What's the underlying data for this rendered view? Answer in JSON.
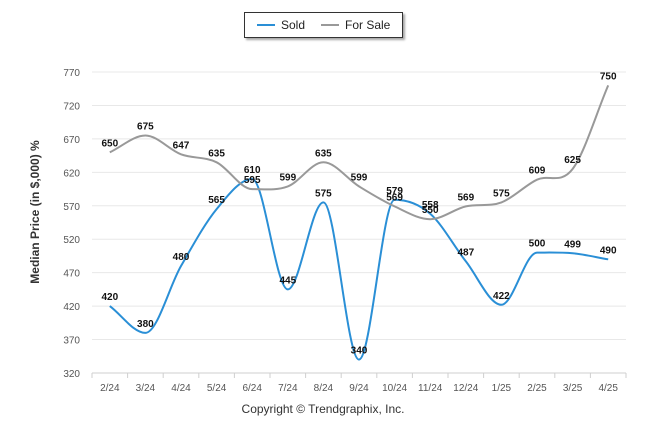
{
  "legend": {
    "sold_label": "Sold",
    "for_sale_label": "For Sale"
  },
  "copyright": "Copyright © Trendgraphix, Inc.",
  "colors": {
    "sold": "#2a8fd6",
    "for_sale": "#999999",
    "grid": "#e8e8e8",
    "axis_text": "#555555",
    "label_text": "#111111"
  },
  "chart_data": {
    "type": "line",
    "categories": [
      "2/24",
      "3/24",
      "4/24",
      "5/24",
      "6/24",
      "7/24",
      "8/24",
      "9/24",
      "10/24",
      "11/24",
      "12/24",
      "1/25",
      "2/25",
      "3/25",
      "4/25"
    ],
    "ylabel": "Median Price (in $,000) %",
    "xlabel": "",
    "ylim": [
      320,
      770
    ],
    "yticks": [
      320,
      370,
      420,
      470,
      520,
      570,
      620,
      670,
      720,
      770
    ],
    "grid": true,
    "legend_position": "top-center",
    "series": [
      {
        "name": "Sold",
        "values": [
          420,
          380,
          480,
          565,
          610,
          445,
          575,
          340,
          579,
          558,
          487,
          422,
          500,
          499,
          490
        ]
      },
      {
        "name": "For Sale",
        "values": [
          650,
          675,
          647,
          635,
          595,
          599,
          635,
          599,
          569,
          550,
          569,
          575,
          609,
          625,
          750
        ]
      }
    ]
  }
}
